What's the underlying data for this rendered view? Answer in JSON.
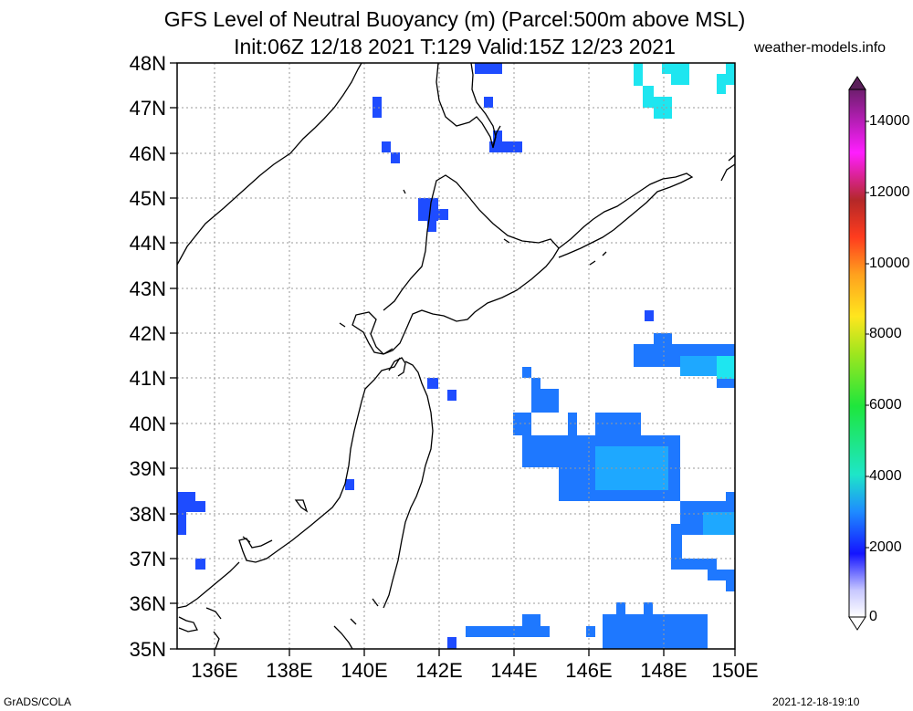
{
  "title": {
    "line1": "GFS Level of Neutral Buoyancy (m) (Parcel:500m above MSL)",
    "line2": "Init:06Z 12/18 2021 T:129 Valid:15Z 12/23 2021"
  },
  "site": "weather-models.info",
  "lat_labels": [
    "48N",
    "47N",
    "46N",
    "45N",
    "44N",
    "43N",
    "42N",
    "41N",
    "40N",
    "39N",
    "38N",
    "37N",
    "36N",
    "35N"
  ],
  "lon_labels": [
    "136E",
    "138E",
    "140E",
    "142E",
    "144E",
    "146E",
    "148E",
    "150E"
  ],
  "colorbar": {
    "labels": [
      "0",
      "2000",
      "4000",
      "6000",
      "8000",
      "10000",
      "12000",
      "14000"
    ],
    "colors": [
      "#ffffff",
      "#d9d9ff",
      "#b0b0ff",
      "#7878ff",
      "#3c3cff",
      "#1414ff",
      "#0a3cff",
      "#1e6eff",
      "#1ea0ff",
      "#1ec8ff",
      "#1ee6dc",
      "#1ee6a0",
      "#1ee664",
      "#32dc1e",
      "#78dc1e",
      "#b4e61e",
      "#e6e61e",
      "#ffdc1e",
      "#ffb41e",
      "#ff8c1e",
      "#ff5a1e",
      "#ff1e1e",
      "#e61414",
      "#c81e1e",
      "#aa2828",
      "#d21eaa",
      "#ff1eff",
      "#dc1edc",
      "#b41eb4",
      "#8c1e8c",
      "#5a1e5a"
    ]
  },
  "footer": {
    "left": "GrADS/COLA",
    "right": "2021-12-18-19:10"
  }
}
